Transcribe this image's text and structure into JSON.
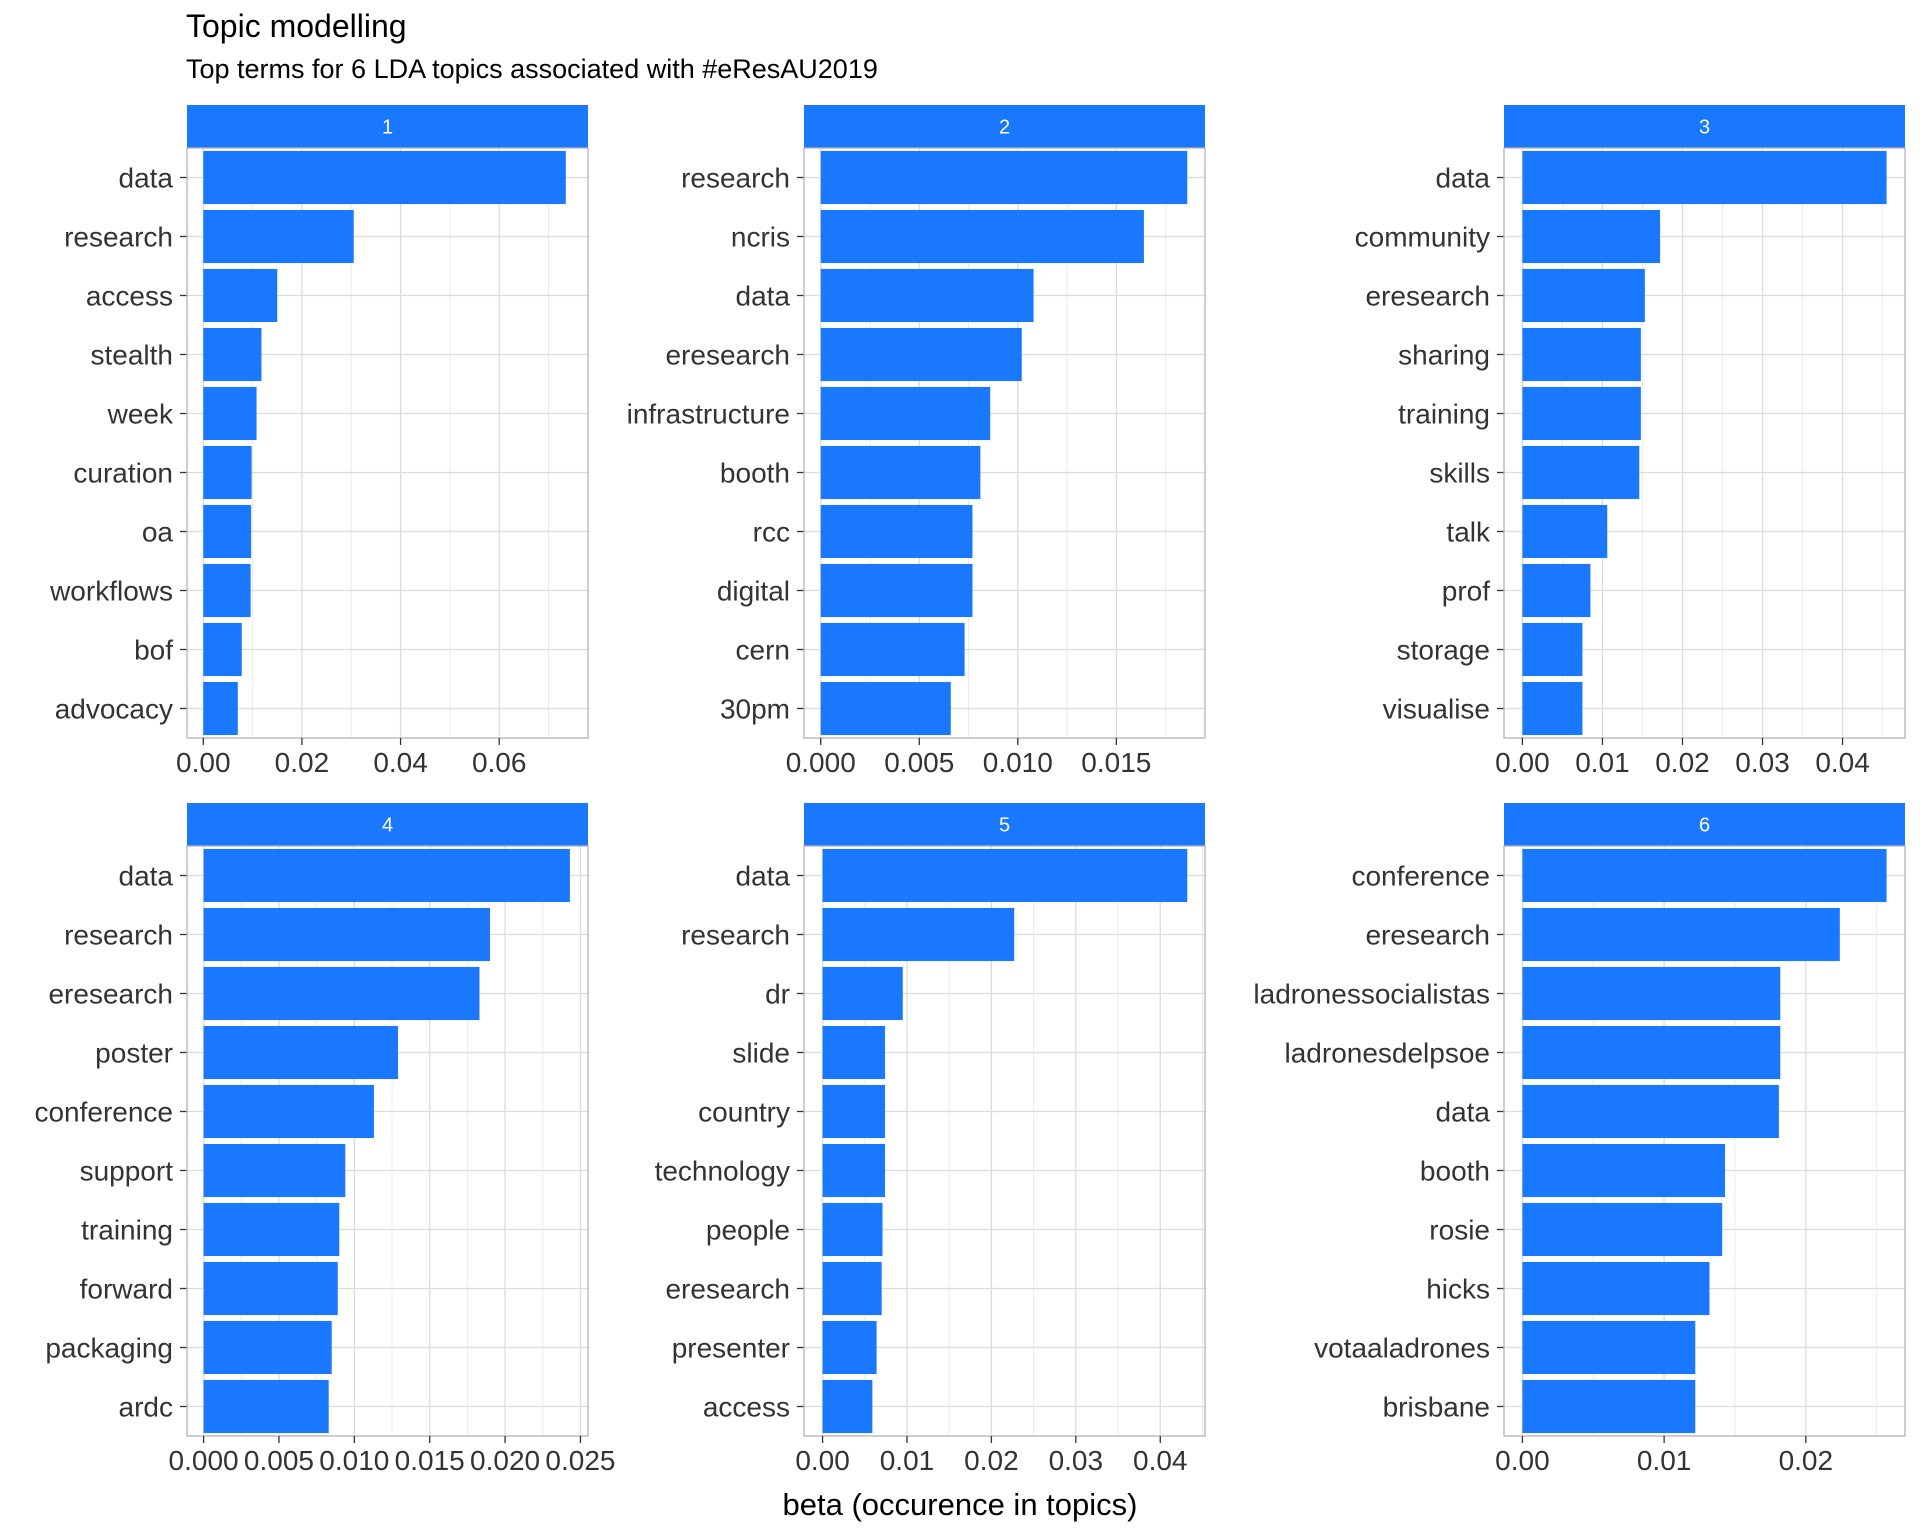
{
  "title": "Topic modelling",
  "subtitle": "Top terms for 6 LDA topics associated with #eResAU2019",
  "xlabel": "beta (occurence in topics)",
  "colors": {
    "bar": "#1a78ff",
    "strip": "#1a78ff",
    "grid": "#dcdcdc",
    "panel_border": "#b3b3b3"
  },
  "chart_data": [
    {
      "type": "bar",
      "orientation": "horizontal",
      "panel": "1",
      "categories": [
        "data",
        "research",
        "access",
        "stealth",
        "week",
        "curation",
        "oa",
        "workflows",
        "bof",
        "advocacy"
      ],
      "values": [
        0.0735,
        0.0305,
        0.015,
        0.0118,
        0.0108,
        0.0098,
        0.0097,
        0.0096,
        0.0078,
        0.007
      ],
      "xlim": [
        -0.0033,
        0.078
      ],
      "ticks": [
        0,
        0.02,
        0.04,
        0.06
      ],
      "tick_labels": [
        "0.00",
        "0.02",
        "0.04",
        "0.06"
      ]
    },
    {
      "type": "bar",
      "orientation": "horizontal",
      "panel": "2",
      "categories": [
        "research",
        "ncris",
        "data",
        "eresearch",
        "infrastructure",
        "booth",
        "rcc",
        "digital",
        "cern",
        "30pm"
      ],
      "values": [
        0.0186,
        0.0164,
        0.0108,
        0.0102,
        0.0086,
        0.0081,
        0.0077,
        0.0077,
        0.0073,
        0.0066
      ],
      "xlim": [
        -0.00085,
        0.0195
      ],
      "ticks": [
        0,
        0.005,
        0.01,
        0.015
      ],
      "tick_labels": [
        "0.000",
        "0.005",
        "0.010",
        "0.015"
      ]
    },
    {
      "type": "bar",
      "orientation": "horizontal",
      "panel": "3",
      "categories": [
        "data",
        "community",
        "eresearch",
        "sharing",
        "training",
        "skills",
        "talk",
        "prof",
        "storage",
        "visualise"
      ],
      "values": [
        0.0455,
        0.0172,
        0.0153,
        0.0148,
        0.0148,
        0.0146,
        0.0106,
        0.0085,
        0.0075,
        0.0075
      ],
      "xlim": [
        -0.0023,
        0.0478
      ],
      "ticks": [
        0,
        0.01,
        0.02,
        0.03,
        0.04
      ],
      "tick_labels": [
        "0.00",
        "0.01",
        "0.02",
        "0.03",
        "0.04"
      ]
    },
    {
      "type": "bar",
      "orientation": "horizontal",
      "panel": "4",
      "categories": [
        "data",
        "research",
        "eresearch",
        "poster",
        "conference",
        "support",
        "training",
        "forward",
        "packaging",
        "ardc"
      ],
      "values": [
        0.0243,
        0.019,
        0.0183,
        0.0129,
        0.0113,
        0.0094,
        0.009,
        0.0089,
        0.0085,
        0.0083
      ],
      "xlim": [
        -0.0011,
        0.0255
      ],
      "ticks": [
        0,
        0.005,
        0.01,
        0.015,
        0.02,
        0.025
      ],
      "tick_labels": [
        "0.000",
        "0.005",
        "0.010",
        "0.015",
        "0.020",
        "0.025"
      ]
    },
    {
      "type": "bar",
      "orientation": "horizontal",
      "panel": "5",
      "categories": [
        "data",
        "research",
        "dr",
        "slide",
        "country",
        "technology",
        "people",
        "eresearch",
        "presenter",
        "access"
      ],
      "values": [
        0.0432,
        0.0227,
        0.0095,
        0.0074,
        0.0074,
        0.0074,
        0.0071,
        0.007,
        0.0064,
        0.0059
      ],
      "xlim": [
        -0.0022,
        0.0453
      ],
      "ticks": [
        0,
        0.01,
        0.02,
        0.03,
        0.04
      ],
      "tick_labels": [
        "0.00",
        "0.01",
        "0.02",
        "0.03",
        "0.04"
      ]
    },
    {
      "type": "bar",
      "orientation": "horizontal",
      "panel": "6",
      "categories": [
        "conference",
        "eresearch",
        "ladronessocialistas",
        "ladronesdelpsoe",
        "data",
        "booth",
        "rosie",
        "hicks",
        "votaaladrones",
        "brisbane"
      ],
      "values": [
        0.0257,
        0.0224,
        0.0182,
        0.0182,
        0.0181,
        0.0143,
        0.0141,
        0.0132,
        0.0122,
        0.0122
      ],
      "xlim": [
        -0.0013,
        0.027
      ],
      "ticks": [
        0,
        0.01,
        0.02
      ],
      "tick_labels": [
        "0.00",
        "0.01",
        "0.02"
      ]
    }
  ]
}
